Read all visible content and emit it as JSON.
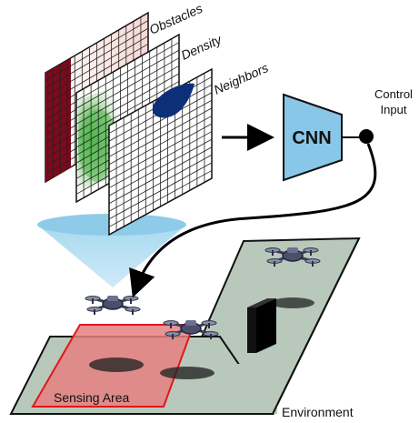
{
  "labels": {
    "obstacles": "Obstacles",
    "density": "Density",
    "neighbors": "Neighbors",
    "cnn": "CNN",
    "control_line1": "Control",
    "control_line2": "Input",
    "sensing_area": "Sensing Area",
    "environment": "Environment"
  },
  "colors": {
    "obstacle_red": "#7a0a1c",
    "density_green": "#3fae3f",
    "neighbor_blue": "#0d2f7a",
    "cnn_fill": "#89c7e8",
    "sensing_fill": "#e58080",
    "sensing_stroke": "#e01818",
    "environment_fill": "#b8c9bb",
    "cone_fill": "#8dcbe8"
  },
  "icons": [
    "drone-icon",
    "arrow-icon",
    "control-node-icon"
  ]
}
